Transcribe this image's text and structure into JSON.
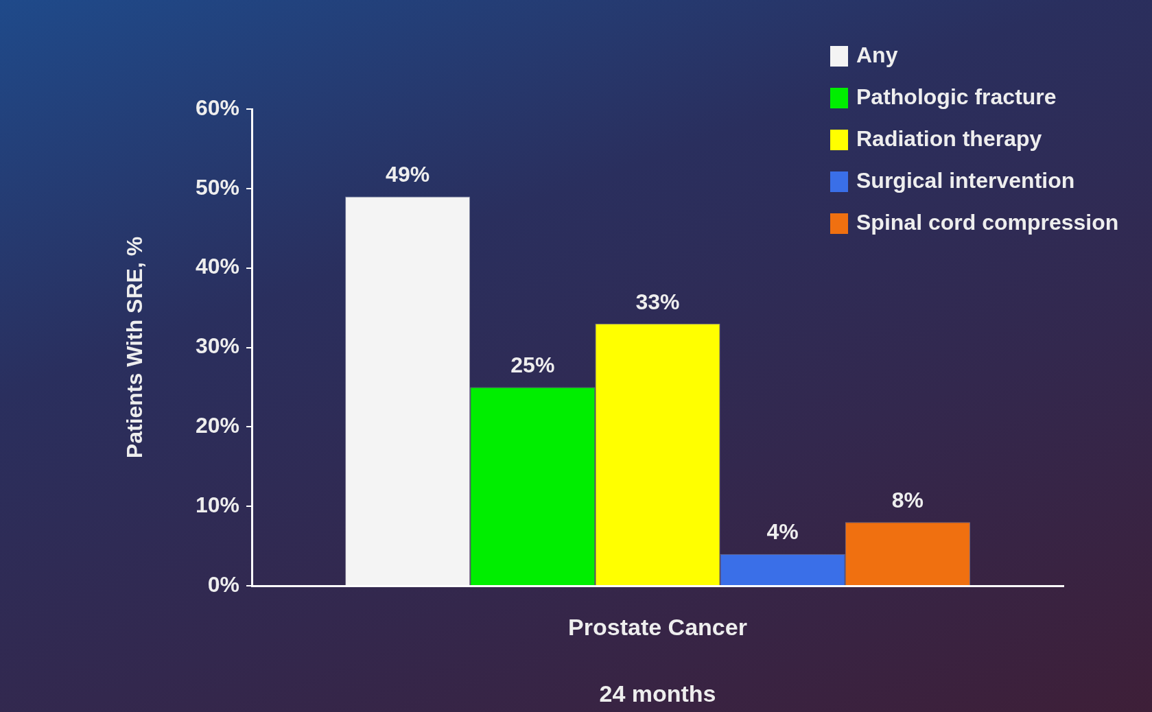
{
  "chart_data": {
    "type": "bar",
    "categories": [
      "Prostate Cancer"
    ],
    "xlabel": "24 months",
    "ylabel": "Patients With SRE, %",
    "series": [
      {
        "name": "Any",
        "color": "#f4f4f4",
        "values": [
          49
        ],
        "value_labels": [
          "49%"
        ]
      },
      {
        "name": "Pathologic fracture",
        "color": "#00ee00",
        "values": [
          25
        ],
        "value_labels": [
          "25%"
        ]
      },
      {
        "name": "Radiation therapy",
        "color": "#ffff00",
        "values": [
          33
        ],
        "value_labels": [
          "33%"
        ]
      },
      {
        "name": "Surgical intervention",
        "color": "#3a6fe8",
        "values": [
          4
        ],
        "value_labels": [
          "4%"
        ]
      },
      {
        "name": "Spinal cord compression",
        "color": "#f07010",
        "values": [
          8
        ],
        "value_labels": [
          "8%"
        ]
      }
    ],
    "ylim": [
      0,
      60
    ],
    "yticks": [
      {
        "value": 0,
        "label": "0%"
      },
      {
        "value": 10,
        "label": "10%"
      },
      {
        "value": 20,
        "label": "20%"
      },
      {
        "value": 30,
        "label": "30%"
      },
      {
        "value": 40,
        "label": "40%"
      },
      {
        "value": 50,
        "label": "50%"
      },
      {
        "value": 60,
        "label": "60%"
      }
    ],
    "grid": false,
    "legend": "top right"
  }
}
